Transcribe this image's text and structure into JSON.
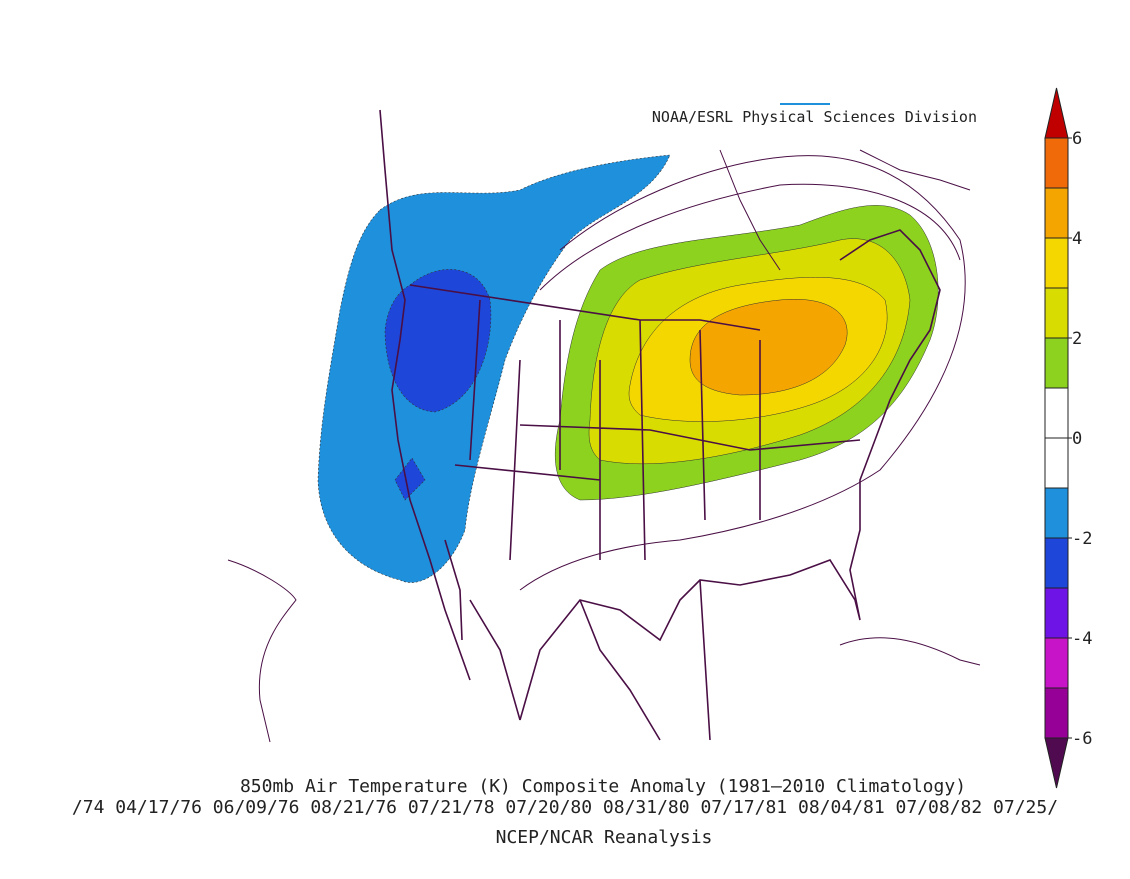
{
  "credit": "NOAA/ESRL Physical Sciences Division",
  "title": "850mb Air Temperature (K) Composite Anomaly (1981–2010 Climatology)",
  "dates": "/74 04/17/76 06/09/76 08/21/76 07/21/78 07/20/80 08/31/80 07/17/81 08/04/81 07/08/82 07/25/",
  "source": "NCEP/NCAR Reanalysis",
  "colorbar": {
    "levels": [
      -6,
      -5,
      -4,
      -3,
      -2,
      -1,
      0,
      1,
      2,
      3,
      4,
      5,
      6
    ],
    "ticks": [
      -6,
      -4,
      -2,
      0,
      2,
      4,
      6
    ],
    "colors": [
      "#500a50",
      "#960096",
      "#c814c8",
      "#6e14e6",
      "#1e46d8",
      "#1e90dc",
      "#ffffff",
      "#ffffff",
      "#8cd21e",
      "#d8dc00",
      "#f5d700",
      "#f5a500",
      "#f06a0a",
      "#c00000"
    ]
  }
}
